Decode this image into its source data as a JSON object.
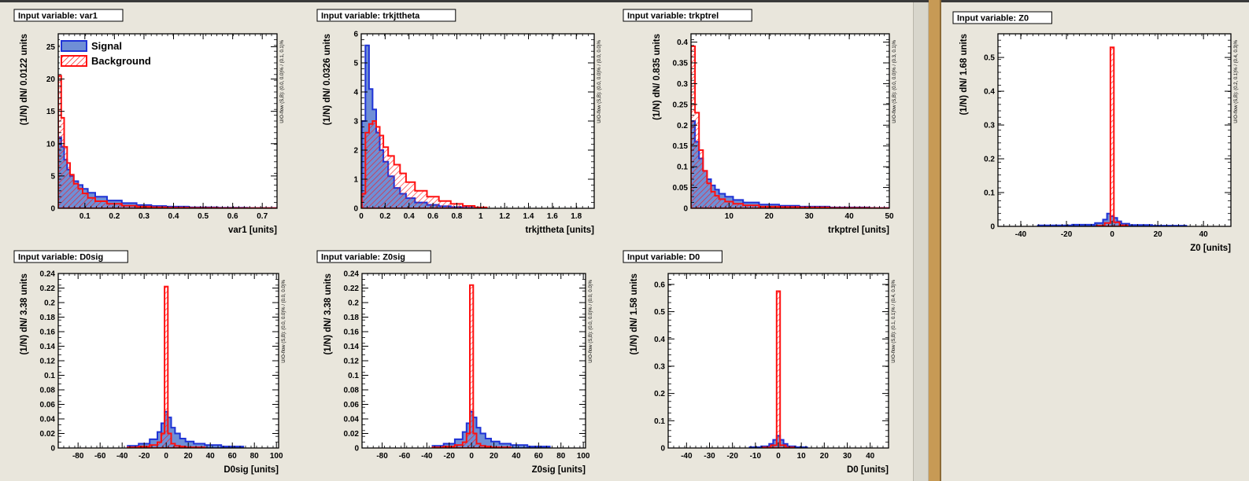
{
  "legend": {
    "signal": "Signal",
    "background": "Background"
  },
  "colors": {
    "signal_fill": "#6f8fd6",
    "signal_line": "#1f33d6",
    "background_line": "#ff1010",
    "frame_bg": "#ffffff"
  },
  "panels": [
    {
      "window": "left",
      "title": "Input variable: var1",
      "ylabel": "(1/N) dN/ 0.0122 units",
      "xlabel": "var1  [units]",
      "overflow": "U/O-flow (S,B): (0.0, 0.0)% / (0.1, 0.1)%",
      "legend": true,
      "chart_data": {
        "type": "histogram",
        "xlim": [
          0.01,
          0.75
        ],
        "ylim": [
          0,
          27
        ],
        "xticks": [
          0.1,
          0.2,
          0.3,
          0.4,
          0.5,
          0.6,
          0.7
        ],
        "yticks": [
          0,
          5,
          10,
          15,
          20,
          25
        ],
        "series": [
          {
            "name": "Signal",
            "x": [
              0.015,
              0.025,
              0.035,
              0.045,
              0.055,
              0.07,
              0.085,
              0.1,
              0.12,
              0.15,
              0.2,
              0.25,
              0.3,
              0.35,
              0.4,
              0.5,
              0.6,
              0.7
            ],
            "values": [
              11,
              9.5,
              7.5,
              6,
              5,
              4.2,
              3.6,
              3,
              2.4,
              1.8,
              1.2,
              0.8,
              0.5,
              0.35,
              0.25,
              0.15,
              0.1,
              0.05
            ]
          },
          {
            "name": "Background",
            "x": [
              0.015,
              0.025,
              0.035,
              0.045,
              0.055,
              0.07,
              0.085,
              0.1,
              0.12,
              0.15,
              0.2,
              0.25,
              0.3,
              0.35,
              0.4,
              0.5,
              0.6,
              0.7
            ],
            "values": [
              20.5,
              14,
              9.5,
              7,
              5.2,
              3.8,
              3,
              2.3,
              1.6,
              1.1,
              0.7,
              0.4,
              0.25,
              0.15,
              0.1,
              0.06,
              0.04,
              0.02
            ]
          }
        ]
      }
    },
    {
      "window": "left",
      "title": "Input variable: trkjttheta",
      "ylabel": "(1/N) dN/ 0.0326 units",
      "xlabel": "trkjttheta  [units]",
      "overflow": "U/O-flow (S,B): (0.0, 0.0)% / (0.0, 0.0)%",
      "legend": false,
      "chart_data": {
        "type": "histogram",
        "xlim": [
          0,
          1.95
        ],
        "ylim": [
          0,
          6
        ],
        "xticks": [
          0,
          0.2,
          0.4,
          0.6,
          0.8,
          1,
          1.2,
          1.4,
          1.6,
          1.8
        ],
        "yticks": [
          0,
          1,
          2,
          3,
          4,
          5,
          6
        ],
        "series": [
          {
            "name": "Signal",
            "x": [
              0.02,
              0.05,
              0.08,
              0.11,
              0.14,
              0.17,
              0.2,
              0.25,
              0.3,
              0.35,
              0.4,
              0.5,
              0.6,
              0.7,
              0.8,
              0.9,
              1.0
            ],
            "values": [
              3.0,
              5.6,
              4.1,
              3.4,
              2.6,
              2.0,
              1.6,
              1.1,
              0.7,
              0.5,
              0.35,
              0.2,
              0.12,
              0.07,
              0.04,
              0.02,
              0.01
            ]
          },
          {
            "name": "Background",
            "x": [
              0.02,
              0.05,
              0.08,
              0.11,
              0.14,
              0.17,
              0.2,
              0.25,
              0.3,
              0.35,
              0.4,
              0.5,
              0.6,
              0.7,
              0.8,
              0.9,
              1.0
            ],
            "values": [
              0.5,
              2.6,
              2.9,
              3.0,
              2.8,
              2.5,
              2.1,
              1.8,
              1.5,
              1.2,
              0.9,
              0.6,
              0.4,
              0.25,
              0.15,
              0.08,
              0.03
            ]
          }
        ]
      }
    },
    {
      "window": "left",
      "title": "Input variable: trkptrel",
      "ylabel": "(1/N) dN/ 0.835 units",
      "xlabel": "trkptrel  [units]",
      "overflow": "U/O-flow (S,B): (0.0, 0.0)% / (0.3, 0.1)%",
      "legend": false,
      "chart_data": {
        "type": "histogram",
        "xlim": [
          0.5,
          50
        ],
        "ylim": [
          0,
          0.42
        ],
        "xticks": [
          10,
          20,
          30,
          40,
          50
        ],
        "yticks": [
          0,
          0.05,
          0.1,
          0.15,
          0.2,
          0.25,
          0.3,
          0.35,
          0.4
        ],
        "series": [
          {
            "name": "Signal",
            "x": [
              1,
              2,
              3,
              4,
              5,
              6,
              7,
              8,
              10,
              12,
              15,
              20,
              25,
              30,
              40,
              50
            ],
            "values": [
              0.21,
              0.16,
              0.12,
              0.09,
              0.07,
              0.055,
              0.045,
              0.035,
              0.028,
              0.02,
              0.014,
              0.009,
              0.006,
              0.004,
              0.002,
              0.001
            ]
          },
          {
            "name": "Background",
            "x": [
              1,
              2,
              3,
              4,
              5,
              6,
              7,
              8,
              10,
              12,
              15,
              20,
              25,
              30,
              40,
              50
            ],
            "values": [
              0.39,
              0.23,
              0.14,
              0.09,
              0.06,
              0.04,
              0.03,
              0.022,
              0.016,
              0.011,
              0.007,
              0.004,
              0.003,
              0.002,
              0.001,
              0.0005
            ]
          }
        ]
      }
    },
    {
      "window": "left",
      "title": "Input variable: D0sig",
      "ylabel": "(1/N) dN/ 3.38 units",
      "xlabel": "D0sig  [units]",
      "overflow": "U/O-flow (S,B): (0.0, 0.0)% / (0.0, 0.0)%",
      "legend": false,
      "chart_data": {
        "type": "histogram",
        "xlim": [
          -98,
          102
        ],
        "ylim": [
          0,
          0.24
        ],
        "xticks": [
          -80,
          -60,
          -40,
          -20,
          0,
          20,
          40,
          60,
          80,
          100
        ],
        "yticks": [
          0,
          0.02,
          0.04,
          0.06,
          0.08,
          0.1,
          0.12,
          0.14,
          0.16,
          0.18,
          0.2,
          0.22,
          0.24
        ],
        "series": [
          {
            "name": "Signal",
            "x": [
              -30,
              -20,
              -10,
              -6,
              -3,
              0,
              3,
              6,
              10,
              15,
              20,
              30,
              40,
              60
            ],
            "values": [
              0.003,
              0.006,
              0.012,
              0.022,
              0.034,
              0.05,
              0.042,
              0.028,
              0.02,
              0.013,
              0.009,
              0.006,
              0.004,
              0.002
            ]
          },
          {
            "name": "Background",
            "x": [
              -30,
              -20,
              -10,
              -6,
              -3,
              0,
              3,
              6,
              10,
              15,
              20,
              30
            ],
            "values": [
              0.001,
              0.002,
              0.004,
              0.008,
              0.02,
              0.222,
              0.02,
              0.006,
              0.003,
              0.002,
              0.001,
              0.001
            ]
          }
        ]
      }
    },
    {
      "window": "left",
      "title": "Input variable: Z0sig",
      "ylabel": "(1/N) dN/ 3.38 units",
      "xlabel": "Z0sig  [units]",
      "overflow": "U/O-flow (S,B): (0.0, 0.0)% / (0.0, 0.0)%",
      "legend": false,
      "chart_data": {
        "type": "histogram",
        "xlim": [
          -98,
          102
        ],
        "ylim": [
          0,
          0.24
        ],
        "xticks": [
          -80,
          -60,
          -40,
          -20,
          0,
          20,
          40,
          60,
          80,
          100
        ],
        "yticks": [
          0,
          0.02,
          0.04,
          0.06,
          0.08,
          0.1,
          0.12,
          0.14,
          0.16,
          0.18,
          0.2,
          0.22,
          0.24
        ],
        "series": [
          {
            "name": "Signal",
            "x": [
              -30,
              -20,
              -10,
              -6,
              -3,
              0,
              3,
              6,
              10,
              15,
              20,
              30,
              40,
              60
            ],
            "values": [
              0.003,
              0.006,
              0.012,
              0.022,
              0.034,
              0.05,
              0.042,
              0.028,
              0.02,
              0.013,
              0.009,
              0.006,
              0.004,
              0.002
            ]
          },
          {
            "name": "Background",
            "x": [
              -30,
              -20,
              -10,
              -6,
              -3,
              0,
              3,
              6,
              10,
              15,
              20,
              30
            ],
            "values": [
              0.001,
              0.002,
              0.004,
              0.008,
              0.02,
              0.224,
              0.02,
              0.006,
              0.003,
              0.002,
              0.001,
              0.001
            ]
          }
        ]
      }
    },
    {
      "window": "left",
      "title": "Input variable: D0",
      "ylabel": "(1/N) dN/ 1.58 units",
      "xlabel": "D0  [units]",
      "overflow": "U/O-flow (S,B): (0.1, 0.1)% / (0.4, 0.3)%",
      "legend": false,
      "chart_data": {
        "type": "histogram",
        "xlim": [
          -48,
          48
        ],
        "ylim": [
          0,
          0.64
        ],
        "xticks": [
          -40,
          -30,
          -20,
          -10,
          0,
          10,
          20,
          30,
          40
        ],
        "yticks": [
          0,
          0.1,
          0.2,
          0.3,
          0.4,
          0.5,
          0.6
        ],
        "series": [
          {
            "name": "Signal",
            "x": [
              -10,
              -5,
              -3,
              -1.5,
              0,
              1.5,
              3,
              5,
              10
            ],
            "values": [
              0.003,
              0.006,
              0.015,
              0.03,
              0.045,
              0.03,
              0.015,
              0.006,
              0.003
            ]
          },
          {
            "name": "Background",
            "x": [
              -5,
              -1.5,
              0,
              1.5,
              5
            ],
            "values": [
              0.002,
              0.01,
              0.575,
              0.01,
              0.002
            ]
          }
        ]
      }
    },
    {
      "window": "right",
      "title": "Input variable: Z0",
      "ylabel": "(1/N) dN/ 1.68 units",
      "xlabel": "Z0  [units]",
      "overflow": "U/O-flow (S,B): (0.2, 0.1)% / (0.4, 0.3)%",
      "legend": false,
      "chart_data": {
        "type": "histogram",
        "xlim": [
          -50,
          52
        ],
        "ylim": [
          0,
          0.57
        ],
        "xticks": [
          -40,
          -20,
          0,
          20,
          40
        ],
        "yticks": [
          0,
          0.1,
          0.2,
          0.3,
          0.4,
          0.5
        ],
        "series": [
          {
            "name": "Signal",
            "x": [
              -25,
              -10,
              -5,
              -3,
              -1.5,
              0,
              1.5,
              3,
              5,
              10,
              25
            ],
            "values": [
              0.003,
              0.005,
              0.01,
              0.02,
              0.038,
              0.03,
              0.025,
              0.015,
              0.008,
              0.004,
              0.002
            ]
          },
          {
            "name": "Background",
            "x": [
              -5,
              -1.5,
              0,
              1.5,
              5
            ],
            "values": [
              0.002,
              0.01,
              0.53,
              0.012,
              0.003
            ]
          }
        ]
      }
    }
  ]
}
